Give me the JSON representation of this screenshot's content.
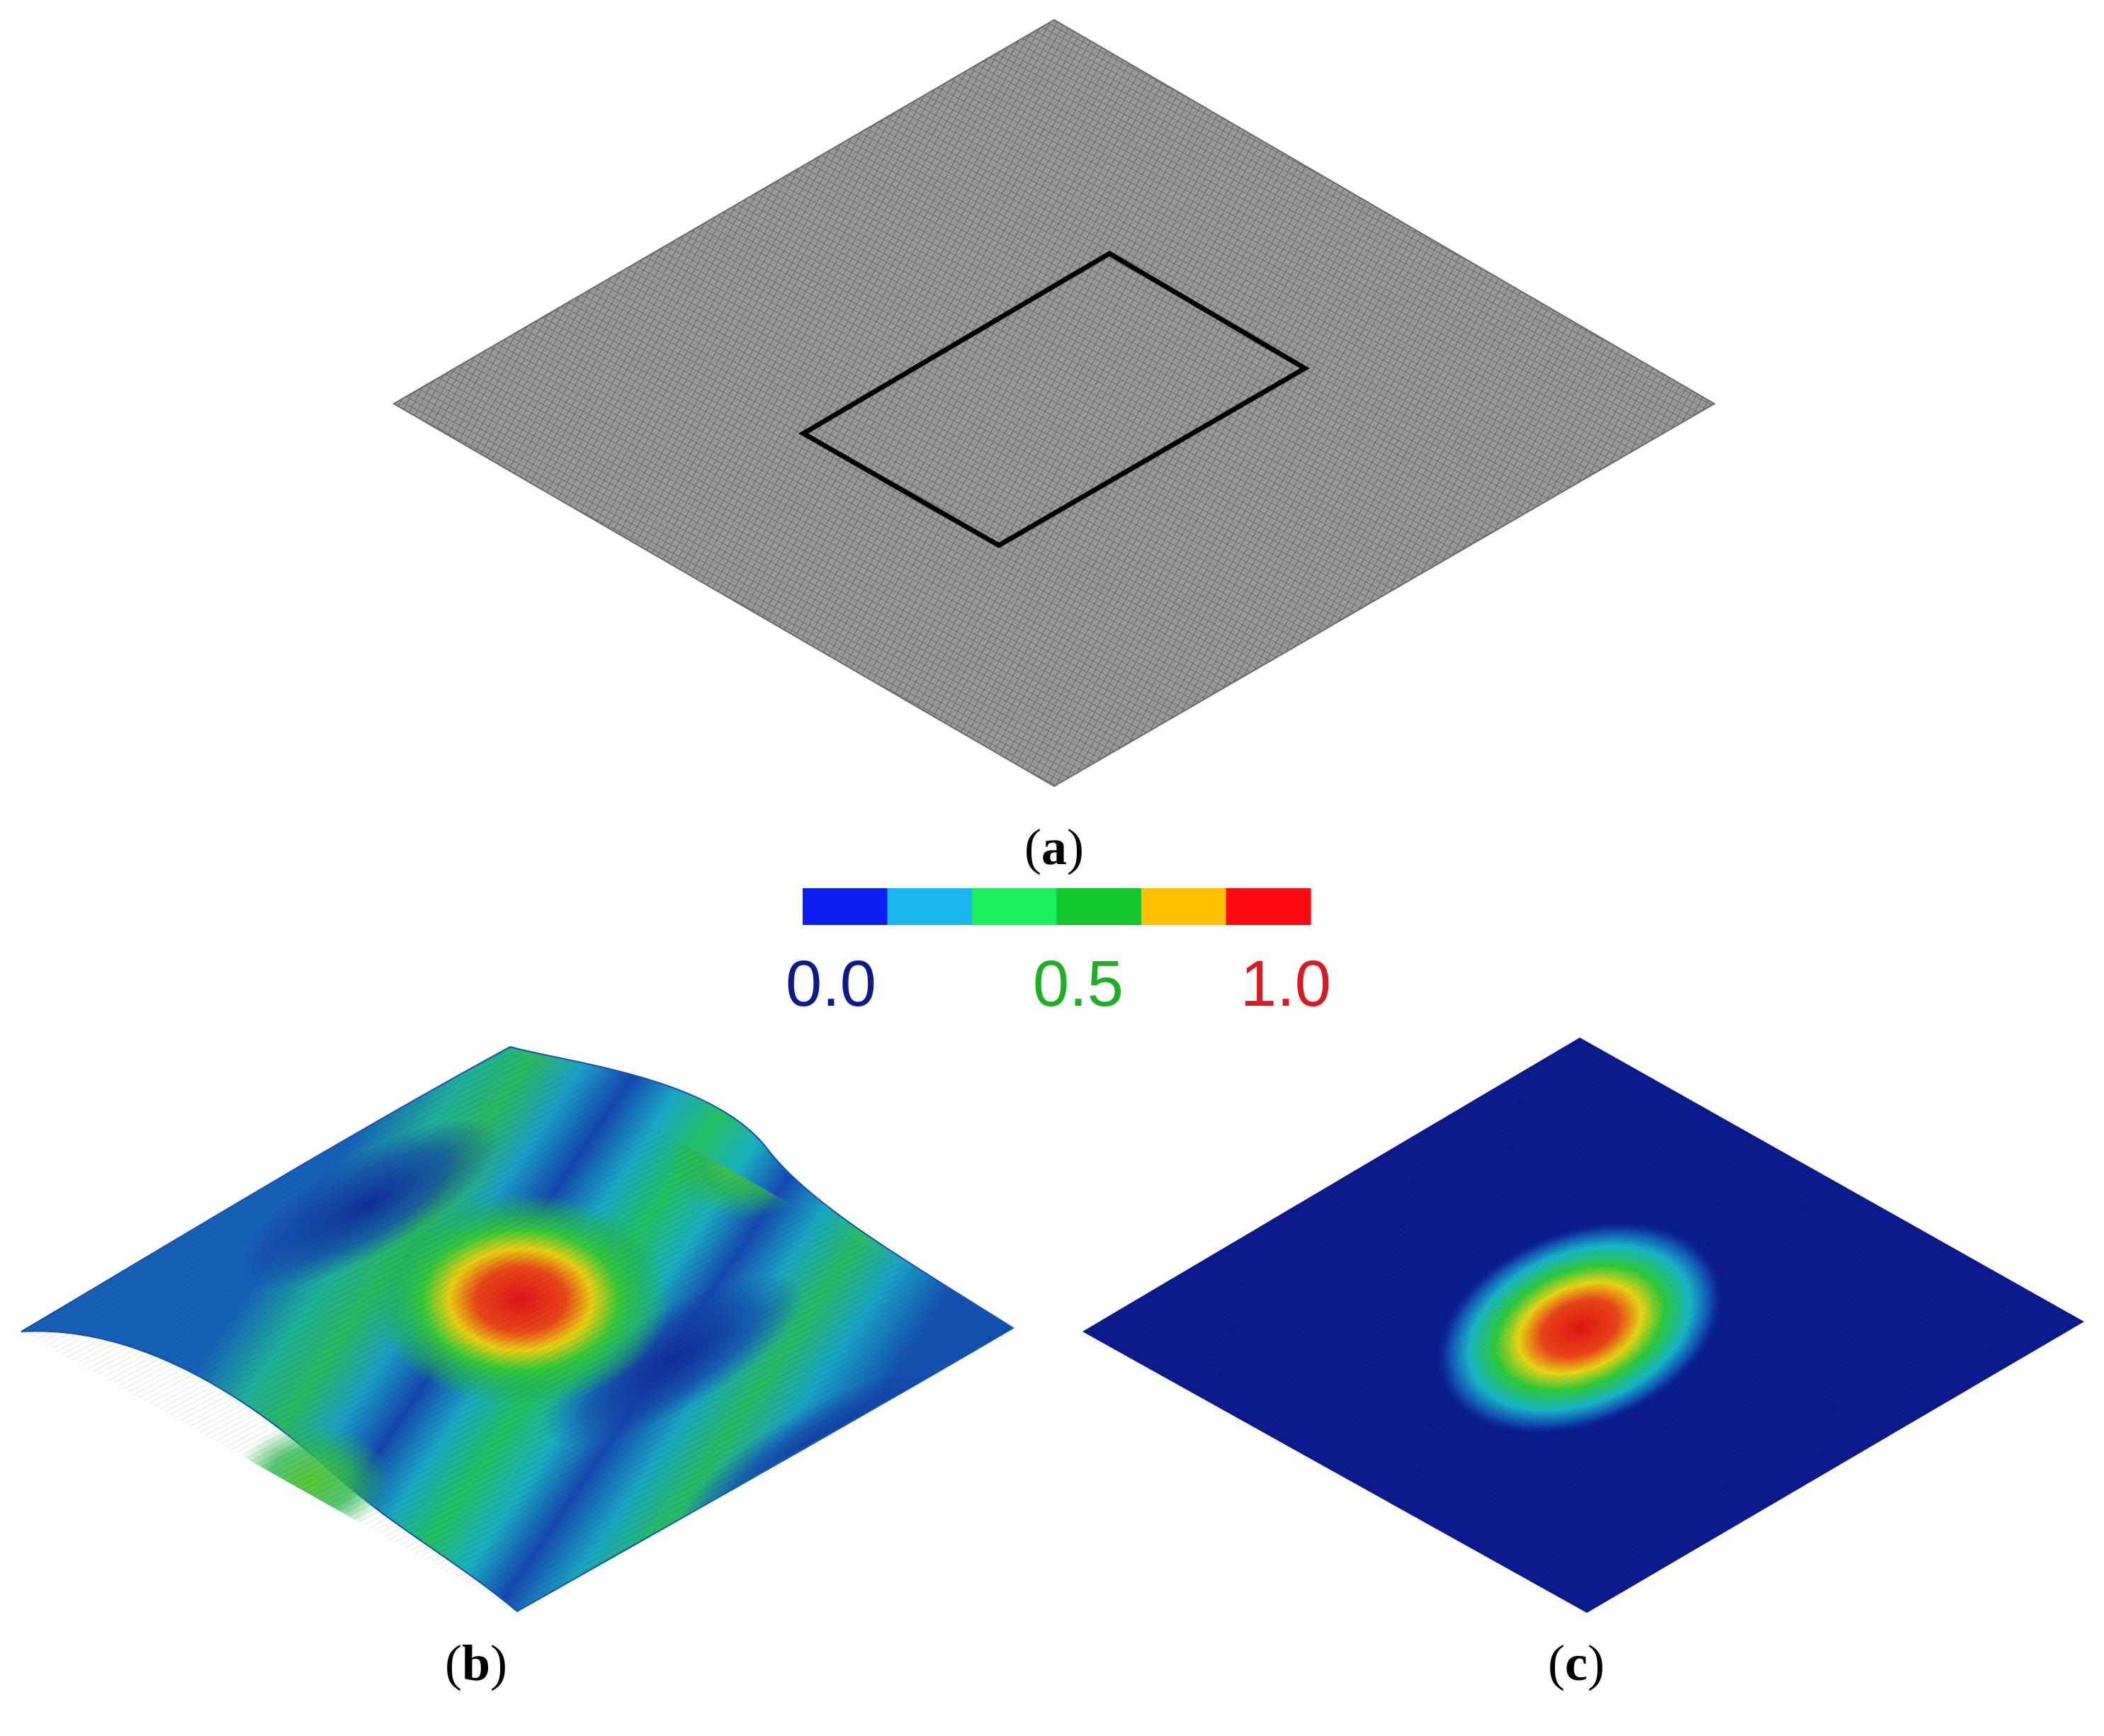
{
  "panels": [
    {
      "id": "a",
      "caption_open": "(",
      "caption_letter": "a",
      "caption_close": ")"
    },
    {
      "id": "b",
      "caption_open": "(",
      "caption_letter": "b",
      "caption_close": ")"
    },
    {
      "id": "c",
      "caption_open": "(",
      "caption_letter": "c",
      "caption_close": ")"
    }
  ],
  "colorbar": {
    "segments": [
      "#0a1ff0",
      "#1ab6f0",
      "#1cef5c",
      "#12c82c",
      "#ffc000",
      "#ff0a10"
    ],
    "labels": [
      {
        "text": "0.0",
        "color": "#0d1b8a"
      },
      {
        "text": "0.5",
        "color": "#1db022"
      },
      {
        "text": "1.0",
        "color": "#d81a22"
      }
    ]
  },
  "colors": {
    "mesh_gray": "#8a8a8a",
    "outline": "#000000",
    "deep_blue": "#0b1a8c",
    "cyan": "#1ab0c8",
    "green": "#22c23a",
    "yellow": "#e8d010",
    "red": "#e01414"
  }
}
